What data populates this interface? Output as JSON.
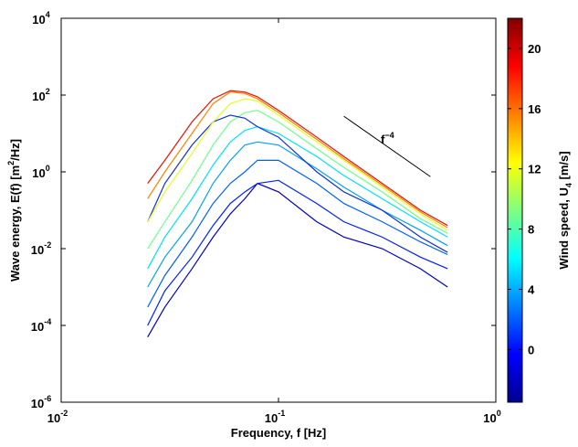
{
  "chart_data": {
    "type": "line",
    "x_label": "Frequency, f [Hz]",
    "y_label": [
      "Wave energy, E(f) [m",
      "2",
      "/Hz]"
    ],
    "colorbar_label": [
      "Wind speed, U",
      "4",
      " [m/s]"
    ],
    "annotation": {
      "text": [
        "f",
        "−4"
      ],
      "x": [
        0.2,
        0.5
      ],
      "y": [
        28,
        0.75
      ]
    },
    "x_scale": "log",
    "y_scale": "log",
    "xlim": [
      0.01,
      1
    ],
    "xticks": [
      {
        "value": 0.01,
        "label": "10",
        "exponent": "-2"
      },
      {
        "value": 0.1,
        "label": "10",
        "exponent": "-1"
      },
      {
        "value": 1,
        "label": "10",
        "exponent": "0"
      }
    ],
    "ylim": [
      1e-06,
      10000
    ],
    "yticks": [
      {
        "value": 1e-06,
        "label": "10",
        "exponent": "-6"
      },
      {
        "value": 0.0001,
        "label": "10",
        "exponent": "-4"
      },
      {
        "value": 0.01,
        "label": "10",
        "exponent": "-2"
      },
      {
        "value": 1,
        "label": "10",
        "exponent": "0"
      },
      {
        "value": 100,
        "label": "10",
        "exponent": "2"
      },
      {
        "value": 10000,
        "label": "10",
        "exponent": "4"
      }
    ],
    "clim": [
      -3.5,
      22
    ],
    "cticks": [
      0,
      4,
      8,
      12,
      16,
      20
    ],
    "x": [
      0.025,
      0.03,
      0.04,
      0.05,
      0.06,
      0.07,
      0.08,
      0.1,
      0.15,
      0.2,
      0.3,
      0.45,
      0.6
    ],
    "series": [
      {
        "color": "#0000c0",
        "values": [
          5e-05,
          0.0003,
          0.003,
          0.02,
          0.08,
          0.2,
          0.5,
          0.3,
          0.05,
          0.02,
          0.01,
          0.003,
          0.001
        ]
      },
      {
        "color": "#0020ff",
        "values": [
          0.0001,
          0.0008,
          0.006,
          0.04,
          0.15,
          0.3,
          0.5,
          0.6,
          0.15,
          0.05,
          0.02,
          0.006,
          0.003
        ]
      },
      {
        "color": "#0060ff",
        "values": [
          0.0003,
          0.002,
          0.02,
          0.15,
          0.5,
          1,
          2,
          2,
          0.5,
          0.15,
          0.05,
          0.015,
          0.007
        ]
      },
      {
        "color": "#00a0ff",
        "values": [
          0.001,
          0.006,
          0.05,
          0.5,
          2,
          5,
          6,
          5,
          1.2,
          0.4,
          0.1,
          0.03,
          0.012
        ]
      },
      {
        "color": "#00e0ff",
        "values": [
          0.003,
          0.02,
          0.2,
          1.5,
          6,
          12,
          15,
          10,
          2.5,
          0.8,
          0.2,
          0.05,
          0.02
        ]
      },
      {
        "color": "#70ff90",
        "values": [
          0.01,
          0.05,
          0.6,
          5,
          20,
          35,
          40,
          20,
          4,
          1.3,
          0.3,
          0.06,
          0.025
        ]
      },
      {
        "color": "#1030d0",
        "values": [
          0.05,
          0.5,
          5,
          20,
          30,
          25,
          15,
          8,
          1,
          0.3,
          0.1,
          0.02,
          0.008
        ]
      },
      {
        "color": "#e0ff20",
        "values": [
          0.05,
          0.3,
          3,
          20,
          60,
          80,
          70,
          30,
          6,
          2,
          0.4,
          0.08,
          0.03
        ]
      },
      {
        "color": "#ff8000",
        "values": [
          0.2,
          1,
          10,
          60,
          120,
          110,
          80,
          35,
          7,
          2.2,
          0.45,
          0.09,
          0.035
        ]
      },
      {
        "color": "#e81000",
        "values": [
          0.5,
          2,
          20,
          80,
          130,
          120,
          90,
          40,
          8,
          2.5,
          0.5,
          0.1,
          0.04
        ]
      }
    ]
  }
}
